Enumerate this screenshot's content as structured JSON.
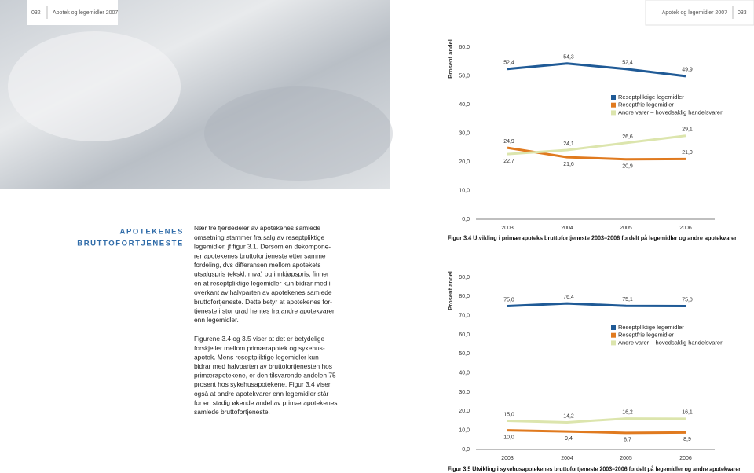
{
  "header": {
    "left_page": "032",
    "left_title": "Apotek og legemidler 2007",
    "right_title": "Apotek og legemidler 2007",
    "right_page": "033"
  },
  "section_title": [
    "APOTEKENES",
    "BRUTTOFORTJENESTE"
  ],
  "body": [
    [
      "Nær tre fjerdedeler av apotekenes samlede",
      "omsetning stammer fra salg av reseptpliktige",
      "legemidler, jf figur 3.1. Dersom en dekompone-",
      "rer apotekenes bruttofortjeneste etter samme",
      "fordeling, dvs differansen mellom apotekets",
      "utsalgspris (ekskl. mva) og innkjøpspris, finner",
      "en at reseptpliktige legemidler kun bidrar med i",
      "overkant av halvparten av apotekenes samlede",
      "bruttofortjeneste. Dette betyr at apotekenes for-",
      "tjeneste i stor grad hentes fra andre apotekvarer",
      "enn legemidler."
    ],
    [
      "Figurene 3.4 og 3.5 viser at det er betydelige",
      "forskjeller mellom primærapotek og sykehus-",
      "apotek. Mens reseptpliktige legemidler kun",
      "bidrar med halvparten av bruttofortjenesten hos",
      "primærapotekene, er den tilsvarende andelen 75",
      "prosent hos sykehusapotekene. Figur 3.4 viser",
      "også at andre apotekvarer enn legemidler står",
      "for en stadig økende andel av primærapotekenes",
      "samlede bruttofortjeneste."
    ]
  ],
  "chart_data": [
    {
      "type": "line",
      "title": "Figur 3.4 Utvikling i primærapoteks bruttofortjeneste 2003–2006 fordelt på legemidler og andre apotekvarer",
      "y_label": "Prosent andel",
      "categories": [
        "2003",
        "2004",
        "2005",
        "2006"
      ],
      "series": [
        {
          "name": "Reseptpliktige legemidler",
          "color": "#1f5a96",
          "values": [
            52.4,
            54.3,
            52.4,
            49.9
          ],
          "value_labels": [
            "52,4",
            "54,3",
            "52,4",
            "49,9"
          ]
        },
        {
          "name": "Reseptfrie legemidler",
          "color": "#e07a1f",
          "values": [
            24.9,
            21.6,
            20.9,
            21.0
          ],
          "value_labels": [
            "24,9",
            "21,6",
            "20,9",
            "21,0"
          ]
        },
        {
          "name": "Andre varer – hovedsaklig handelsvarer",
          "color": "#dce5ad",
          "values": [
            22.7,
            24.1,
            26.6,
            29.1
          ],
          "value_labels": [
            "22,7",
            "24,1",
            "26,6",
            "29,1"
          ]
        }
      ],
      "ylim": [
        0,
        60
      ],
      "yticks": [
        {
          "value": 0,
          "label": "0,0"
        },
        {
          "value": 10,
          "label": "10,0"
        },
        {
          "value": 20,
          "label": "20,0"
        },
        {
          "value": 30,
          "label": "30,0"
        },
        {
          "value": 40,
          "label": "40,0"
        },
        {
          "value": 50,
          "label": "50,0"
        },
        {
          "value": 60,
          "label": "60,0"
        }
      ],
      "grid": false
    },
    {
      "type": "line",
      "title": "Figur 3.5 Utvikling i sykehusapotekenes bruttofortjeneste 2003–2006 fordelt på legemidler og andre apotekvarer",
      "y_label": "Prosent andel",
      "categories": [
        "2003",
        "2004",
        "2005",
        "2006"
      ],
      "series": [
        {
          "name": "Reseptpliktige legemidler",
          "color": "#1f5a96",
          "values": [
            75.0,
            76.4,
            75.1,
            75.0
          ],
          "value_labels": [
            "75,0",
            "76,4",
            "75,1",
            "75,0"
          ]
        },
        {
          "name": "Reseptfrie legemidler",
          "color": "#e07a1f",
          "values": [
            10.0,
            9.4,
            8.7,
            8.9
          ],
          "value_labels": [
            "10,0",
            "9,4",
            "8,7",
            "8,9"
          ]
        },
        {
          "name": "Andre varer – hovedsaklig handelsvarer",
          "color": "#dce5ad",
          "values": [
            15.0,
            14.2,
            16.2,
            16.1
          ],
          "value_labels": [
            "15,0",
            "14,2",
            "16,2",
            "16,1"
          ]
        }
      ],
      "ylim": [
        0,
        90
      ],
      "yticks": [
        {
          "value": 0,
          "label": "0,0"
        },
        {
          "value": 10,
          "label": "10,0"
        },
        {
          "value": 20,
          "label": "20,0"
        },
        {
          "value": 30,
          "label": "30,0"
        },
        {
          "value": 40,
          "label": "40,0"
        },
        {
          "value": 50,
          "label": "50,0"
        },
        {
          "value": 60,
          "label": "60,0"
        },
        {
          "value": 70,
          "label": "70,0"
        },
        {
          "value": 80,
          "label": "80,0"
        },
        {
          "value": 90,
          "label": "90,0"
        }
      ],
      "grid": false
    }
  ]
}
